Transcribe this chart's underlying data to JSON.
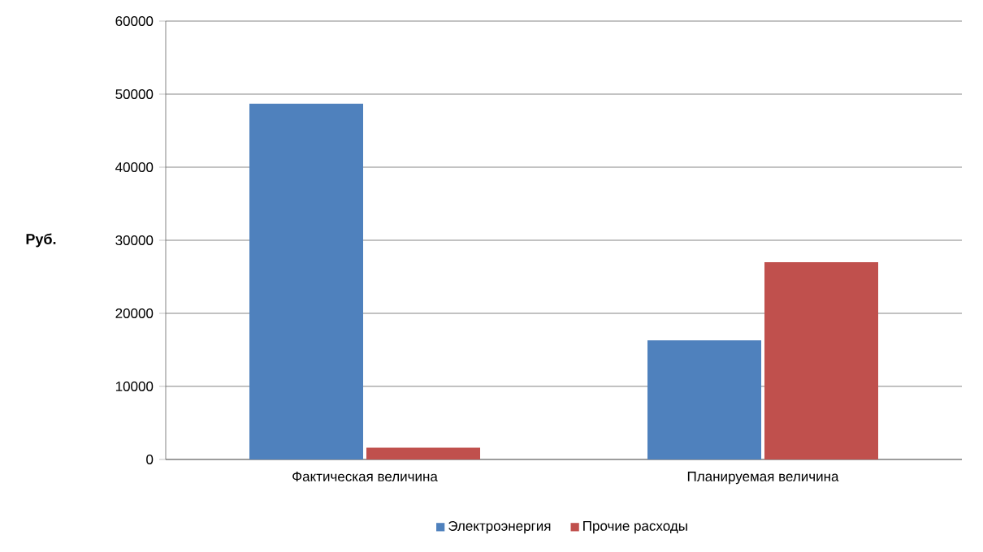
{
  "chart_data": {
    "type": "bar",
    "ylabel": "Руб.",
    "categories": [
      "Фактическая величина",
      "Планируемая величина"
    ],
    "series": [
      {
        "name": "Электроэнергия",
        "color": "#4f81bd",
        "values": [
          48700,
          16300
        ]
      },
      {
        "name": "Прочие расходы",
        "color": "#c0504d",
        "values": [
          1600,
          27000
        ]
      }
    ],
    "ylim": [
      0,
      60000
    ],
    "yticks": [
      0,
      10000,
      20000,
      30000,
      40000,
      50000,
      60000
    ],
    "grid": "y",
    "legend": "bottom"
  }
}
